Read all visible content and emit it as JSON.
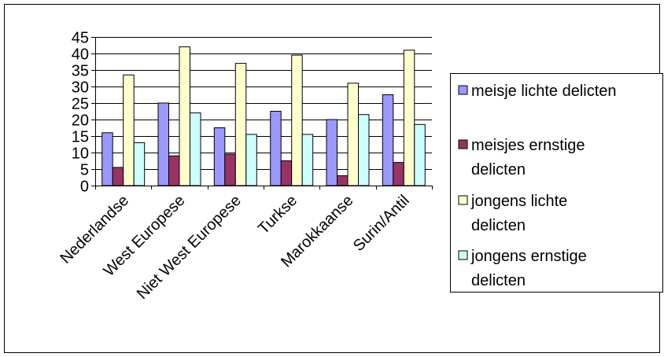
{
  "chart_data": {
    "type": "bar",
    "categories": [
      "Nederlandse",
      "West Europese",
      "Niet West Europese",
      "Turkse",
      "Marokkaanse",
      "Surin/Antil"
    ],
    "series": [
      {
        "name": "meisje lichte delicten",
        "color": "#9999ff",
        "values": [
          16,
          25,
          17.5,
          22.5,
          20,
          27.5
        ]
      },
      {
        "name": "meisjes ernstige delicten",
        "color": "#993366",
        "values": [
          5.5,
          9,
          9.5,
          7.5,
          3,
          7
        ]
      },
      {
        "name": "jongens  lichte delicten",
        "color": "#ffffcc",
        "values": [
          33.5,
          42,
          37,
          39.5,
          31,
          41
        ]
      },
      {
        "name": "jongens ernstige delicten",
        "color": "#ccffff",
        "values": [
          13,
          22,
          15.5,
          15.5,
          21.5,
          18.5
        ]
      }
    ],
    "yticks": [
      "0",
      "5",
      "10",
      "15",
      "20",
      "25",
      "30",
      "35",
      "40",
      "45"
    ],
    "ylim": [
      0,
      45
    ],
    "grid": true,
    "legend_position": "right",
    "legend_lines": [
      [
        "meisje lichte delicten"
      ],
      [
        "meisjes ernstige",
        "delicten"
      ],
      [
        "jongens  lichte",
        "delicten"
      ],
      [
        "jongens ernstige",
        "delicten"
      ]
    ]
  }
}
